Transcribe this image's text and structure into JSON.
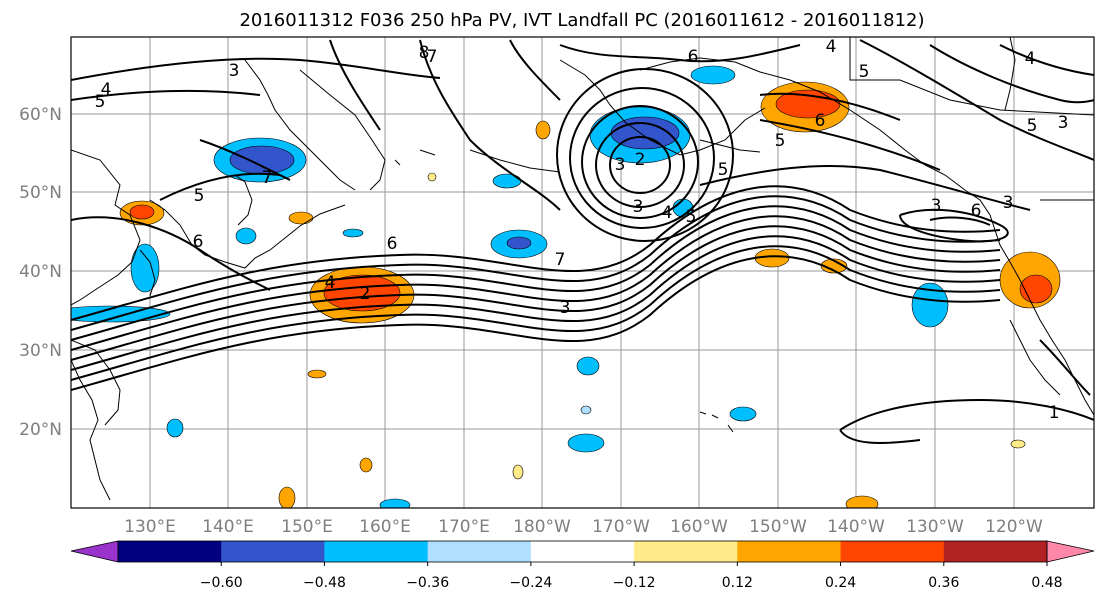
{
  "title": "2016011312 F036 250 hPa PV, IVT Landfall PC (2016011612 - 2016011812)",
  "map": {
    "projection": "Plate Carree",
    "lon_ticks": [
      "130°E",
      "140°E",
      "150°E",
      "160°E",
      "170°E",
      "180°W",
      "170°W",
      "160°W",
      "150°W",
      "140°W",
      "130°W",
      "120°W"
    ],
    "lat_ticks": [
      "60°N",
      "50°N",
      "40°N",
      "30°N",
      "20°N"
    ],
    "gridlines": true,
    "coastlines": true,
    "contour_labels": [
      "3",
      "4",
      "5",
      "8",
      "6",
      "4",
      "5",
      "6",
      "5",
      "3",
      "7",
      "5",
      "6",
      "4",
      "2",
      "6",
      "7",
      "2",
      "3",
      "4",
      "5",
      "5",
      "3",
      "7",
      "3",
      "5",
      "6",
      "3",
      "4",
      "3",
      "1"
    ]
  },
  "colorbar": {
    "tick_labels": [
      "−0.60",
      "−0.48",
      "−0.36",
      "−0.24",
      "−0.12",
      "0.12",
      "0.24",
      "0.36",
      "0.48",
      "0.60"
    ],
    "colors": [
      "#9933cc",
      "#000080",
      "#3355cc",
      "#00bfff",
      "#b0e0ff",
      "#ffffff",
      "#ffeb88",
      "#ffa500",
      "#ff4500",
      "#b22222",
      "#ff88aa"
    ],
    "extend": "both"
  },
  "colors": {
    "negative_strong": "#3355cc",
    "negative": "#00bfff",
    "negative_light": "#b0e0ff",
    "positive_light": "#ffeb88",
    "positive": "#ffa500",
    "positive_strong": "#ff4500",
    "contour": "#000000",
    "grid": "#999999",
    "tick_label": "#7f7f7f"
  }
}
